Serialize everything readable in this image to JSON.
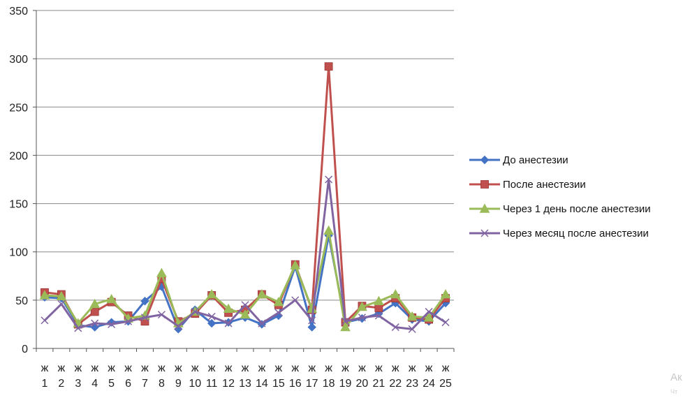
{
  "chart_data": {
    "type": "line",
    "title": "",
    "xlabel": "",
    "ylabel": "",
    "ylim": [
      0,
      350
    ],
    "yticks": [
      0,
      50,
      100,
      150,
      200,
      250,
      300,
      350
    ],
    "grid": true,
    "legend_position": "right",
    "category_prefix": "ж",
    "categories": [
      "1",
      "2",
      "3",
      "4",
      "5",
      "6",
      "7",
      "8",
      "9",
      "10",
      "11",
      "12",
      "13",
      "14",
      "15",
      "16",
      "17",
      "18",
      "19",
      "20",
      "21",
      "22",
      "23",
      "24",
      "25"
    ],
    "series": [
      {
        "name": "До анестезии",
        "color": "#4472c4",
        "marker": "diamond",
        "values": [
          53,
          52,
          24,
          22,
          27,
          28,
          49,
          64,
          20,
          40,
          26,
          27,
          32,
          25,
          34,
          85,
          22,
          117,
          27,
          31,
          36,
          47,
          30,
          28,
          47
        ]
      },
      {
        "name": "После анестезии",
        "color": "#c0504d",
        "marker": "square",
        "values": [
          58,
          56,
          25,
          38,
          48,
          34,
          28,
          72,
          28,
          36,
          55,
          37,
          40,
          56,
          45,
          87,
          40,
          292,
          27,
          44,
          42,
          52,
          32,
          30,
          52
        ]
      },
      {
        "name": "Через 1 день после анестезии",
        "color": "#9bbb59",
        "marker": "triangle",
        "values": [
          55,
          54,
          26,
          46,
          51,
          31,
          34,
          78,
          26,
          38,
          56,
          41,
          35,
          56,
          48,
          86,
          41,
          122,
          22,
          43,
          49,
          56,
          33,
          32,
          56
        ]
      },
      {
        "name": "Через месяц после анестезии",
        "color": "#8064a2",
        "marker": "x",
        "values": [
          29,
          46,
          21,
          26,
          25,
          28,
          32,
          35,
          23,
          38,
          33,
          26,
          45,
          26,
          37,
          50,
          29,
          175,
          28,
          32,
          34,
          22,
          20,
          38,
          27
        ]
      }
    ]
  },
  "watermark": {
    "text": "Ак",
    "subtext": "Чт"
  }
}
